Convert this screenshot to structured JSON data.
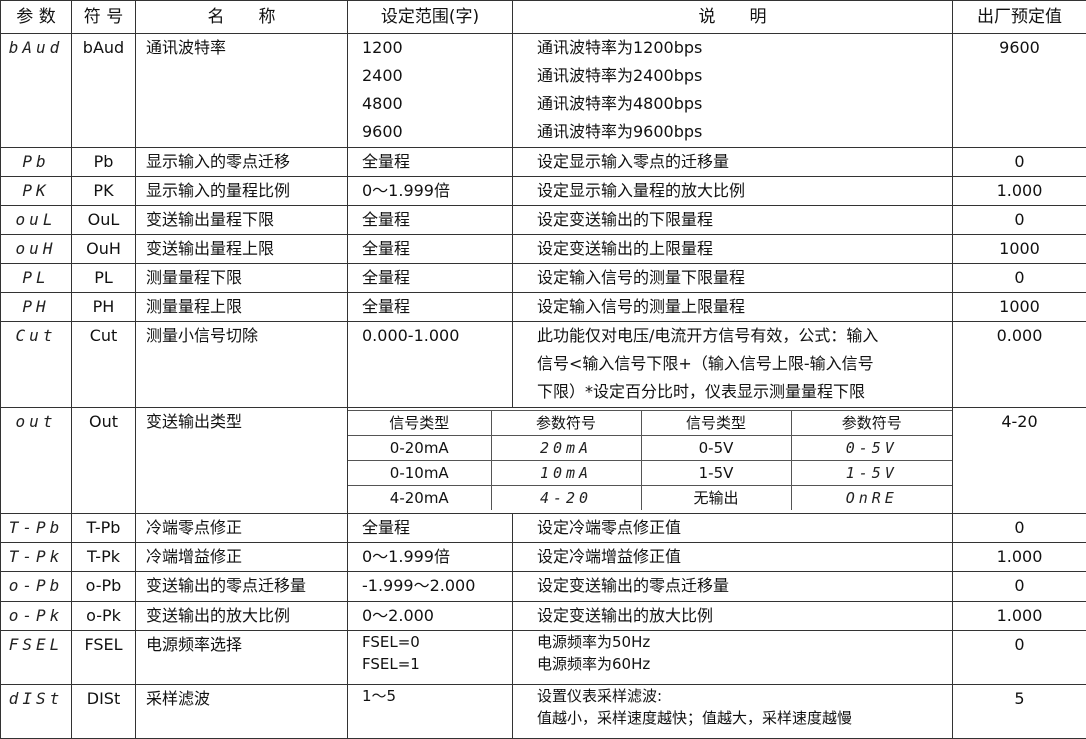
{
  "headers": [
    "参 数",
    "符 号",
    "名　　称",
    "设定范围(字)",
    "说　　明",
    "出厂预定值"
  ],
  "rows": [
    {
      "code": "bAud",
      "symbol": "bAud",
      "name": "通讯波特率",
      "range": [
        "1200",
        "2400",
        "4800",
        "9600"
      ],
      "desc": [
        "通讯波特率为1200bps",
        "通讯波特率为2400bps",
        "通讯波特率为4800bps",
        "通讯波特率为9600bps"
      ],
      "default": "9600"
    },
    {
      "code": "Pb",
      "symbol": "Pb",
      "name": "显示输入的零点迁移",
      "range": [
        "全量程"
      ],
      "desc": [
        "设定显示输入零点的迁移量"
      ],
      "default": "0"
    },
    {
      "code": "PK",
      "symbol": "PK",
      "name": "显示输入的量程比例",
      "range": [
        "0～1.999倍"
      ],
      "desc": [
        "设定显示输入量程的放大比例"
      ],
      "default": "1.000"
    },
    {
      "code": "ouL",
      "symbol": "OuL",
      "name": "变送输出量程下限",
      "range": [
        "全量程"
      ],
      "desc": [
        "设定变送输出的下限量程"
      ],
      "default": "0"
    },
    {
      "code": "ouH",
      "symbol": "OuH",
      "name": "变送输出量程上限",
      "range": [
        "全量程"
      ],
      "desc": [
        "设定变送输出的上限量程"
      ],
      "default": "1000"
    },
    {
      "code": "PL",
      "symbol": "PL",
      "name": "测量量程下限",
      "range": [
        "全量程"
      ],
      "desc": [
        "设定输入信号的测量下限量程"
      ],
      "default": "0"
    },
    {
      "code": "PH",
      "symbol": "PH",
      "name": "测量量程上限",
      "range": [
        "全量程"
      ],
      "desc": [
        "设定输入信号的测量上限量程"
      ],
      "default": "1000"
    },
    {
      "code": "Cut",
      "symbol": "Cut",
      "name": "测量小信号切除",
      "range": [
        "0.000-1.000"
      ],
      "desc": [
        "此功能仅对电压/电流开方信号有效，公式：输入",
        "信号<输入信号下限+（输入信号上限-输入信号",
        "下限）*设定百分比时，仪表显示测量量程下限"
      ],
      "default": "0.000"
    },
    {
      "code": "out",
      "symbol": "Out",
      "name": "变送输出类型",
      "subtable": [
        [
          "信号类型",
          "参数符号",
          "信号类型",
          "参数符号"
        ],
        [
          "0-20mA",
          "20mA",
          "0-5V",
          "0-5V"
        ],
        [
          "0-10mA",
          "10mA",
          "1-5V",
          "1-5V"
        ],
        [
          "4-20mA",
          "4-20",
          "无输出",
          "OnRE"
        ]
      ],
      "default": "4-20"
    },
    {
      "code": "T-Pb",
      "symbol": "T-Pb",
      "name": "冷端零点修正",
      "range": [
        "全量程"
      ],
      "desc": [
        "设定冷端零点修正值"
      ],
      "default": "0"
    },
    {
      "code": "T-Pk",
      "symbol": "T-Pk",
      "name": "冷端增益修正",
      "range": [
        "0～1.999倍"
      ],
      "desc": [
        "设定冷端增益修正值"
      ],
      "default": "1.000"
    },
    {
      "code": "o-Pb",
      "symbol": "o-Pb",
      "name": "变送输出的零点迁移量",
      "range": [
        "-1.999～2.000"
      ],
      "desc": [
        "设定变送输出的零点迁移量"
      ],
      "default": "0"
    },
    {
      "code": "o-Pk",
      "symbol": "o-Pk",
      "name": "变送输出的放大比例",
      "range": [
        "0～2.000"
      ],
      "desc": [
        "设定变送输出的放大比例"
      ],
      "default": "1.000"
    },
    {
      "code": "FSEL",
      "symbol": "FSEL",
      "name": "电源频率选择",
      "range": [
        "FSEL=0",
        "FSEL=1"
      ],
      "desc": [
        "电源频率为50Hz",
        "电源频率为60Hz"
      ],
      "default": "0",
      "small": true
    },
    {
      "code": "dISt",
      "symbol": "DISt",
      "name": "采样滤波",
      "range": [
        "1～5"
      ],
      "desc": [
        "设置仪表采样滤波:",
        "值越小，采样速度越快；值越大，采样速度越慢"
      ],
      "default": "5",
      "small": true
    }
  ]
}
